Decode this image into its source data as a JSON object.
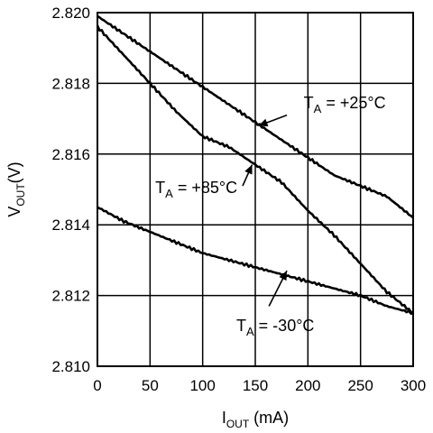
{
  "chart_data": {
    "type": "line",
    "title": "",
    "xlabel": {
      "main": "I",
      "sub": "OUT",
      "rest": " (mA)"
    },
    "ylabel": {
      "main": "V",
      "sub": "OUT",
      "rest": "(V)"
    },
    "xlim": [
      0,
      300
    ],
    "ylim": [
      2.81,
      2.82
    ],
    "x_ticks": [
      0,
      50,
      100,
      150,
      200,
      250,
      300
    ],
    "y_ticks": [
      2.81,
      2.812,
      2.814,
      2.816,
      2.818,
      2.82
    ],
    "x_tick_labels": [
      "0",
      "50",
      "100",
      "150",
      "200",
      "250",
      "300"
    ],
    "y_tick_labels": [
      "2.810",
      "2.812",
      "2.814",
      "2.816",
      "2.818",
      "2.820"
    ],
    "grid": true,
    "series": [
      {
        "name": "T_A = +25°C",
        "x": [
          0,
          25,
          50,
          75,
          100,
          125,
          150,
          175,
          200,
          225,
          250,
          275,
          300
        ],
        "y": [
          2.8199,
          2.8194,
          2.8189,
          2.8184,
          2.8179,
          2.8174,
          2.8169,
          2.8164,
          2.8159,
          2.8154,
          2.8151,
          2.8148,
          2.8142
        ]
      },
      {
        "name": "T_A = +85°C",
        "x": [
          0,
          25,
          50,
          75,
          100,
          125,
          150,
          175,
          200,
          225,
          250,
          275,
          300
        ],
        "y": [
          2.8196,
          2.8188,
          2.818,
          2.8172,
          2.8165,
          2.8162,
          2.8157,
          2.8152,
          2.8144,
          2.8137,
          2.8129,
          2.8121,
          2.8115
        ]
      },
      {
        "name": "T_A = -30°C",
        "x": [
          0,
          25,
          50,
          75,
          100,
          125,
          150,
          175,
          200,
          225,
          250,
          275,
          300
        ],
        "y": [
          2.8145,
          2.8141,
          2.8138,
          2.8135,
          2.8132,
          2.813,
          2.8128,
          2.8126,
          2.8124,
          2.8122,
          2.812,
          2.8117,
          2.8115
        ]
      }
    ],
    "annotations": [
      {
        "main": "T",
        "sub": "A",
        "rest": " = +25°C",
        "series": 0,
        "text_at": [
          196,
          2.8173
        ],
        "arrow_from": [
          180,
          2.8171
        ],
        "arrow_to": [
          153,
          2.8168
        ]
      },
      {
        "main": "T",
        "sub": "A",
        "rest": " = +85°C",
        "series": 1,
        "text_at": [
          55,
          2.8149
        ],
        "arrow_from": [
          138,
          2.8151
        ],
        "arrow_to": [
          147,
          2.8157
        ]
      },
      {
        "main": "T",
        "sub": "A",
        "rest": " = -30°C",
        "series": 2,
        "text_at": [
          132,
          2.811
        ],
        "arrow_from": [
          163,
          2.8117
        ],
        "arrow_to": [
          180,
          2.8127
        ]
      }
    ]
  }
}
